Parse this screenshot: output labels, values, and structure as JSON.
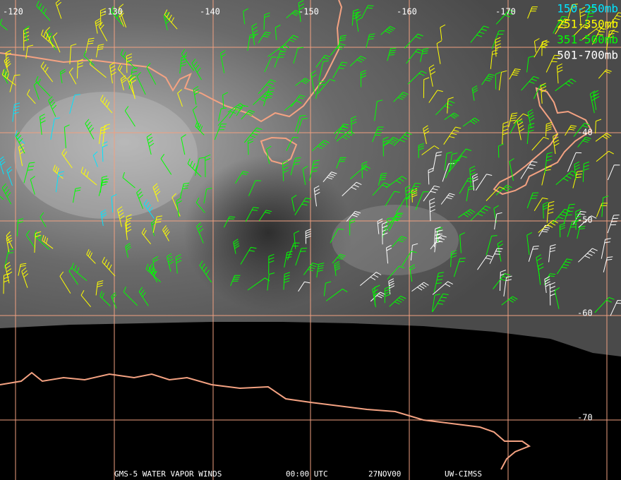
{
  "map": {
    "longitude_labels": [
      "-120",
      "-130",
      "-140",
      "-150",
      "-160",
      "-170"
    ],
    "latitude_labels": [
      "-40",
      "-50",
      "-60",
      "-70"
    ],
    "legend": [
      {
        "label": "150-250mb",
        "color": "#00e5ff"
      },
      {
        "label": "251-350mb",
        "color": "#ffff00"
      },
      {
        "label": "351-500mb",
        "color": "#00ff00"
      },
      {
        "label": "501-700mb",
        "color": "#ffffff"
      }
    ],
    "footer": {
      "satellite": "GMS-5 WATER VAPOR WINDS",
      "time": "00:00 UTC",
      "date": "27NOV00",
      "source": "UW-CIMSS"
    }
  }
}
